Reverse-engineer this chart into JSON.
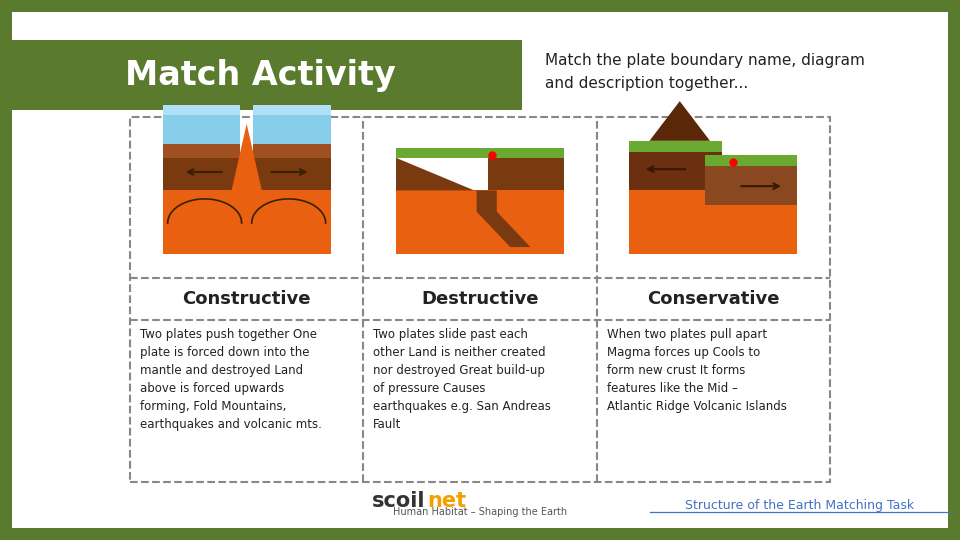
{
  "title": "Match Activity",
  "subtitle": "Match the plate boundary name, diagram\nand description together...",
  "outer_bg": "#5a7a2e",
  "header_bg": "#5a7a2e",
  "inner_bg": "#ffffff",
  "columns": [
    "Constructive",
    "Destructive",
    "Conservative"
  ],
  "descriptions": [
    "Two plates push together One\nplate is forced down into the\nmantle and destroyed Land\nabove is forced upwards\nforming, Fold Mountains,\nearthquakes and volcanic mts.",
    "Two plates slide past each\nother Land is neither created\nnor destroyed Great build-up\nof pressure Causes\nearthquakes e.g. San Andreas\nFault",
    "When two plates pull apart\nMagma forces up Cools to\nform new crust It forms\nfeatures like the Mid –\nAtlantic Ridge Volcanic Islands"
  ],
  "footer_brand1": "scoil",
  "footer_brand2": "net",
  "footer_sub": "Human Habitat – Shaping the Earth",
  "footer_right": "Structure of the Earth Matching Task",
  "text_color": "#222222",
  "header_text_color": "#ffffff",
  "footer_brand_color": "#333333",
  "footer_net_color": "#f0a000",
  "footer_sub_color": "#555555",
  "footer_link_color": "#4472c4",
  "dash_color": "#888888",
  "col_label_fontsize": 13,
  "desc_fontsize": 8.5,
  "title_fontsize": 24,
  "subtitle_fontsize": 11
}
